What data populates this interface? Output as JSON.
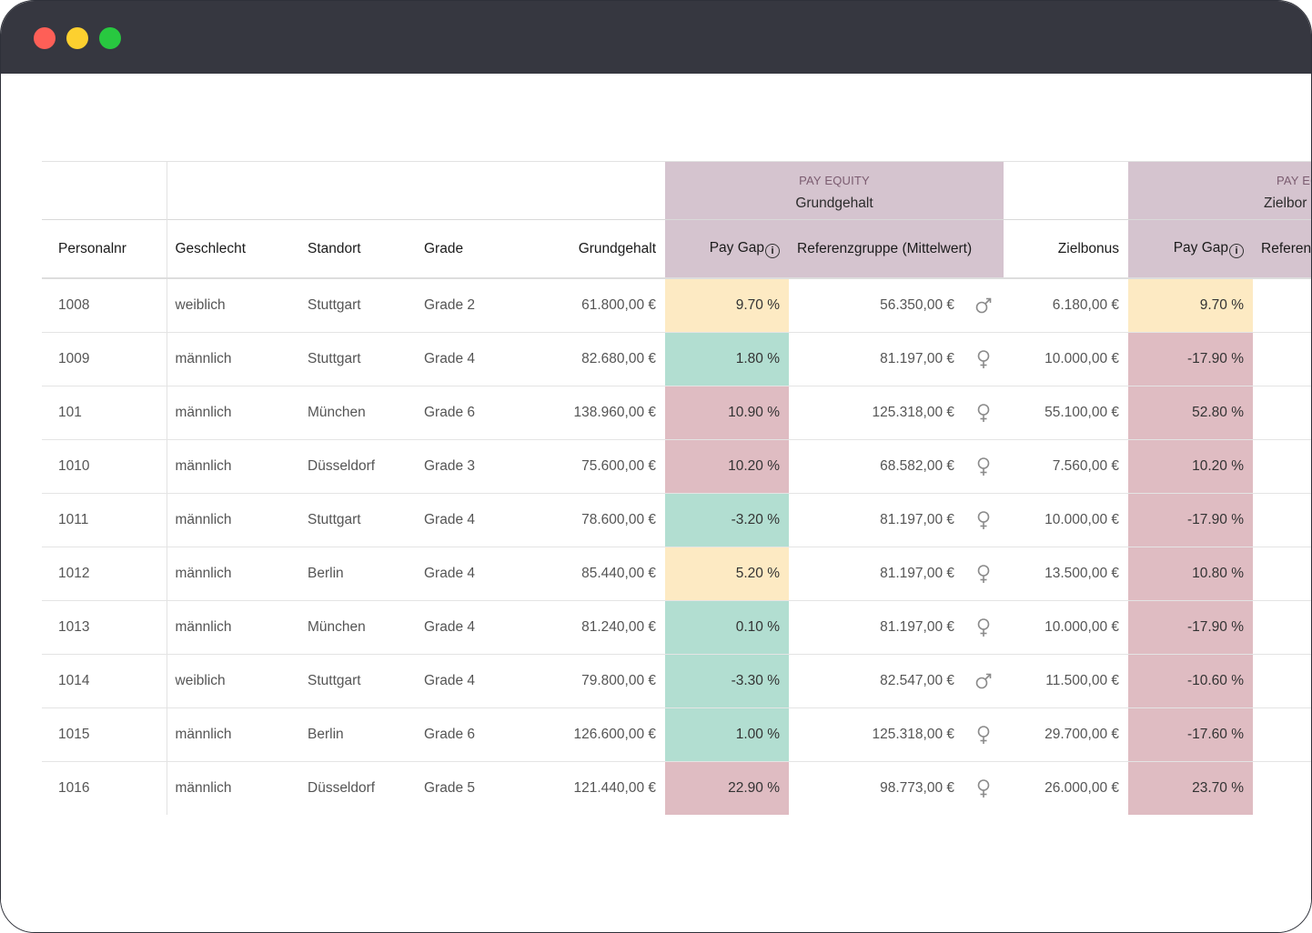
{
  "window": {
    "controls": [
      "close",
      "minimize",
      "maximize"
    ]
  },
  "group_headers": [
    {
      "sub": "PAY EQUITY",
      "title": "Grundgehalt"
    },
    {
      "sub": "PAY EQU",
      "title": "Zielbor"
    }
  ],
  "columns": {
    "personalnr": "Personalnr",
    "geschlecht": "Geschlecht",
    "standort": "Standort",
    "grade": "Grade",
    "grundgehalt": "Grundgehalt",
    "pay_gap": "Pay Gap",
    "referenzgruppe": "Referenzgruppe (Mittelwert)",
    "zielbonus": "Zielbonus",
    "pay_gap_2": "Pay Gap",
    "referenz_2": "Referen"
  },
  "colors": {
    "titlebar": "#363740",
    "group_header_bg": "#d5c4cf",
    "gap_red": "#dfbcc2",
    "gap_green": "#b2ded1",
    "gap_yellow": "#fdeac3"
  },
  "rows": [
    {
      "personalnr": "1008",
      "geschlecht": "weiblich",
      "standort": "Stuttgart",
      "grade": "Grade 2",
      "grundgehalt": "61.800,00 €",
      "pay_gap": "9.70 %",
      "gap_status": "yellow",
      "referenz": "56.350,00 €",
      "ref_icon": "male-symbol-icon",
      "zielbonus": "6.180,00 €",
      "pay_gap_2": "9.70 %",
      "gap_status_2": "yellow"
    },
    {
      "personalnr": "1009",
      "geschlecht": "männlich",
      "standort": "Stuttgart",
      "grade": "Grade 4",
      "grundgehalt": "82.680,00 €",
      "pay_gap": "1.80 %",
      "gap_status": "green",
      "referenz": "81.197,00 €",
      "ref_icon": "female-symbol-icon",
      "zielbonus": "10.000,00 €",
      "pay_gap_2": "-17.90 %",
      "gap_status_2": "red"
    },
    {
      "personalnr": "101",
      "geschlecht": "männlich",
      "standort": "München",
      "grade": "Grade 6",
      "grundgehalt": "138.960,00 €",
      "pay_gap": "10.90 %",
      "gap_status": "red",
      "referenz": "125.318,00 €",
      "ref_icon": "female-symbol-icon",
      "zielbonus": "55.100,00 €",
      "pay_gap_2": "52.80 %",
      "gap_status_2": "red"
    },
    {
      "personalnr": "1010",
      "geschlecht": "männlich",
      "standort": "Düsseldorf",
      "grade": "Grade 3",
      "grundgehalt": "75.600,00 €",
      "pay_gap": "10.20 %",
      "gap_status": "red",
      "referenz": "68.582,00 €",
      "ref_icon": "female-symbol-icon",
      "zielbonus": "7.560,00 €",
      "pay_gap_2": "10.20 %",
      "gap_status_2": "red"
    },
    {
      "personalnr": "1011",
      "geschlecht": "männlich",
      "standort": "Stuttgart",
      "grade": "Grade 4",
      "grundgehalt": "78.600,00 €",
      "pay_gap": "-3.20 %",
      "gap_status": "green",
      "referenz": "81.197,00 €",
      "ref_icon": "female-symbol-icon",
      "zielbonus": "10.000,00 €",
      "pay_gap_2": "-17.90 %",
      "gap_status_2": "red"
    },
    {
      "personalnr": "1012",
      "geschlecht": "männlich",
      "standort": "Berlin",
      "grade": "Grade 4",
      "grundgehalt": "85.440,00 €",
      "pay_gap": "5.20 %",
      "gap_status": "yellow",
      "referenz": "81.197,00 €",
      "ref_icon": "female-symbol-icon",
      "zielbonus": "13.500,00 €",
      "pay_gap_2": "10.80 %",
      "gap_status_2": "red"
    },
    {
      "personalnr": "1013",
      "geschlecht": "männlich",
      "standort": "München",
      "grade": "Grade 4",
      "grundgehalt": "81.240,00 €",
      "pay_gap": "0.10 %",
      "gap_status": "green",
      "referenz": "81.197,00 €",
      "ref_icon": "female-symbol-icon",
      "zielbonus": "10.000,00 €",
      "pay_gap_2": "-17.90 %",
      "gap_status_2": "red"
    },
    {
      "personalnr": "1014",
      "geschlecht": "weiblich",
      "standort": "Stuttgart",
      "grade": "Grade 4",
      "grundgehalt": "79.800,00 €",
      "pay_gap": "-3.30 %",
      "gap_status": "green",
      "referenz": "82.547,00 €",
      "ref_icon": "male-symbol-icon",
      "zielbonus": "11.500,00 €",
      "pay_gap_2": "-10.60 %",
      "gap_status_2": "red"
    },
    {
      "personalnr": "1015",
      "geschlecht": "männlich",
      "standort": "Berlin",
      "grade": "Grade 6",
      "grundgehalt": "126.600,00 €",
      "pay_gap": "1.00 %",
      "gap_status": "green",
      "referenz": "125.318,00 €",
      "ref_icon": "female-symbol-icon",
      "zielbonus": "29.700,00 €",
      "pay_gap_2": "-17.60 %",
      "gap_status_2": "red"
    },
    {
      "personalnr": "1016",
      "geschlecht": "männlich",
      "standort": "Düsseldorf",
      "grade": "Grade 5",
      "grundgehalt": "121.440,00 €",
      "pay_gap": "22.90 %",
      "gap_status": "red",
      "referenz": "98.773,00 €",
      "ref_icon": "female-symbol-icon",
      "zielbonus": "26.000,00 €",
      "pay_gap_2": "23.70 %",
      "gap_status_2": "red"
    }
  ]
}
